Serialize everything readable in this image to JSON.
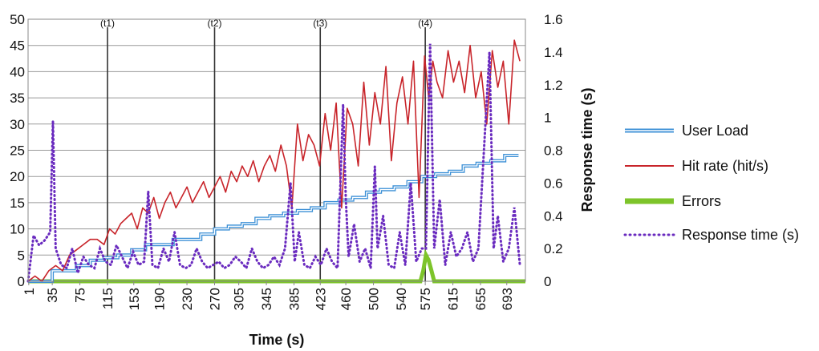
{
  "chart_data": {
    "type": "line",
    "xlabel": "Time (s)",
    "ylabel": "",
    "y2label": "Response time (s)",
    "ylim": [
      0,
      50
    ],
    "y2lim": [
      0,
      1.6
    ],
    "yticks": [
      "0",
      "5",
      "10",
      "15",
      "20",
      "25",
      "30",
      "35",
      "40",
      "45",
      "50"
    ],
    "y2ticks": [
      "0",
      "0.2",
      "0.4",
      "0.6",
      "0.8",
      "1",
      "1.2",
      "1.4",
      "1.6"
    ],
    "xticks": [
      "1",
      "35",
      "75",
      "115",
      "153",
      "190",
      "230",
      "270",
      "305",
      "345",
      "385",
      "423",
      "460",
      "500",
      "540",
      "575",
      "615",
      "655",
      "693"
    ],
    "xlim": [
      0,
      720
    ],
    "grid": true,
    "legend_position": "right",
    "markers": [
      {
        "label": "(t1)",
        "x": 115
      },
      {
        "label": "(t2)",
        "x": 270
      },
      {
        "label": "(t3)",
        "x": 423
      },
      {
        "label": "(t4)",
        "x": 575
      }
    ],
    "series": [
      {
        "name": "User Load",
        "axis": "left",
        "color": "#3a8fd6",
        "style": "double-step",
        "x": [
          0,
          35,
          70,
          90,
          110,
          130,
          150,
          170,
          190,
          210,
          230,
          250,
          270,
          290,
          310,
          330,
          350,
          370,
          390,
          410,
          430,
          450,
          470,
          490,
          510,
          530,
          550,
          570,
          590,
          610,
          630,
          650,
          670,
          690,
          710
        ],
        "y": [
          0,
          2,
          3,
          4,
          4.5,
          5,
          6,
          7,
          7,
          8,
          8,
          9,
          10,
          10.5,
          11,
          12,
          12.5,
          13,
          13.5,
          14,
          15,
          15.5,
          16,
          17,
          17.5,
          18,
          19,
          20,
          20.5,
          21,
          22,
          22.5,
          23,
          24,
          24
        ]
      },
      {
        "name": "Hit rate (hit/s)",
        "axis": "left",
        "color": "#c8242a",
        "x": [
          0,
          10,
          20,
          30,
          40,
          50,
          60,
          70,
          80,
          90,
          100,
          110,
          118,
          126,
          134,
          142,
          150,
          158,
          166,
          174,
          182,
          190,
          198,
          206,
          214,
          222,
          230,
          238,
          246,
          254,
          262,
          270,
          278,
          286,
          294,
          302,
          310,
          318,
          326,
          334,
          342,
          350,
          358,
          366,
          374,
          382,
          390,
          398,
          406,
          414,
          422,
          430,
          438,
          446,
          454,
          462,
          470,
          478,
          486,
          494,
          502,
          510,
          518,
          526,
          534,
          542,
          550,
          558,
          566,
          574,
          580,
          586,
          592,
          600,
          608,
          616,
          624,
          632,
          640,
          648,
          656,
          664,
          672,
          680,
          688,
          696,
          704,
          712
        ],
        "y": [
          0,
          1,
          0,
          2,
          3,
          2,
          5,
          6,
          7,
          8,
          8,
          7,
          10,
          9,
          11,
          12,
          13,
          10,
          14,
          13,
          16,
          12,
          15,
          17,
          14,
          16,
          18,
          15,
          17,
          19,
          16,
          18,
          20,
          17,
          21,
          19,
          22,
          20,
          23,
          19,
          22,
          24,
          21,
          26,
          22,
          14,
          30,
          23,
          28,
          26,
          22,
          32,
          25,
          34,
          14,
          33,
          30,
          22,
          38,
          26,
          36,
          30,
          41,
          23,
          34,
          39,
          30,
          42,
          16,
          43,
          35,
          42,
          38,
          35,
          44,
          38,
          42,
          36,
          45,
          35,
          40,
          30,
          44,
          37,
          42,
          30,
          46,
          42
        ]
      },
      {
        "name": "Errors",
        "axis": "left",
        "color": "#7dc42a",
        "x": [
          0,
          568,
          572,
          576,
          580,
          584,
          588,
          720
        ],
        "y": [
          0,
          0,
          2,
          5,
          4,
          2,
          0,
          0
        ]
      },
      {
        "name": "Response time (s)",
        "axis": "right",
        "color": "#6a2bbf",
        "style": "dotted",
        "x": [
          0,
          8,
          16,
          24,
          32,
          36,
          40,
          48,
          56,
          64,
          72,
          80,
          88,
          96,
          104,
          112,
          120,
          128,
          136,
          144,
          152,
          160,
          168,
          174,
          180,
          188,
          196,
          204,
          212,
          220,
          228,
          236,
          244,
          252,
          260,
          268,
          276,
          284,
          292,
          300,
          308,
          316,
          324,
          332,
          340,
          348,
          356,
          364,
          372,
          380,
          386,
          392,
          400,
          408,
          416,
          424,
          432,
          440,
          448,
          456,
          460,
          464,
          472,
          480,
          488,
          496,
          502,
          506,
          514,
          522,
          530,
          538,
          546,
          554,
          562,
          570,
          576,
          582,
          588,
          596,
          604,
          612,
          620,
          628,
          636,
          644,
          652,
          660,
          668,
          674,
          680,
          688,
          696,
          704,
          712
        ],
        "y": [
          0,
          0.28,
          0.22,
          0.25,
          0.3,
          0.98,
          0.2,
          0.1,
          0.08,
          0.2,
          0.05,
          0.15,
          0.1,
          0.08,
          0.2,
          0.12,
          0.1,
          0.22,
          0.15,
          0.08,
          0.18,
          0.1,
          0.12,
          0.55,
          0.1,
          0.08,
          0.2,
          0.12,
          0.3,
          0.1,
          0.08,
          0.1,
          0.2,
          0.12,
          0.08,
          0.1,
          0.12,
          0.08,
          0.1,
          0.15,
          0.12,
          0.08,
          0.2,
          0.12,
          0.08,
          0.1,
          0.15,
          0.1,
          0.2,
          0.6,
          0.12,
          0.3,
          0.1,
          0.08,
          0.15,
          0.1,
          0.2,
          0.12,
          0.08,
          1.08,
          0.5,
          0.15,
          0.35,
          0.12,
          0.2,
          0.08,
          0.7,
          0.2,
          0.4,
          0.1,
          0.08,
          0.3,
          0.1,
          0.6,
          0.12,
          0.2,
          0.2,
          1.45,
          0.2,
          0.5,
          0.1,
          0.3,
          0.15,
          0.2,
          0.3,
          0.12,
          0.2,
          0.8,
          1.4,
          0.2,
          0.4,
          0.12,
          0.2,
          0.45,
          0.1
        ]
      }
    ]
  }
}
